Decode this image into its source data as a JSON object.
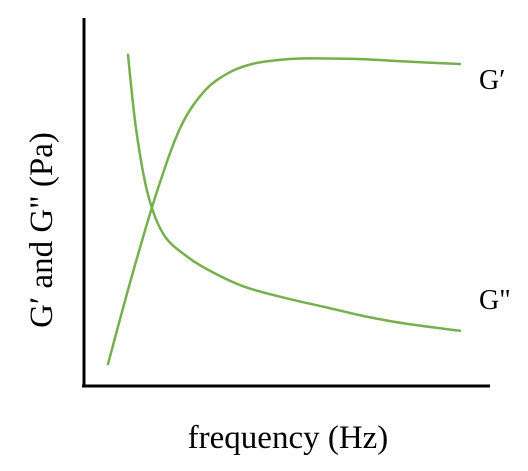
{
  "chart_data": {
    "type": "line",
    "title": "",
    "xlabel": "frequency (Hz)",
    "ylabel": "G′ and G\" (Pa)",
    "grid": false,
    "ticks_shown": false,
    "axis_units": "normalized (no tick labels printed)",
    "xlim": [
      0,
      10
    ],
    "ylim": [
      0,
      10
    ],
    "series_color": "#76b04e",
    "series": [
      {
        "name": "G′",
        "x": [
          0.6,
          1.2,
          1.8,
          2.4,
          3.0,
          3.6,
          4.2,
          4.8,
          5.4,
          6.0,
          7.0,
          8.0,
          9.4
        ],
        "y": [
          0.6,
          3.0,
          5.2,
          7.0,
          8.0,
          8.5,
          8.75,
          8.85,
          8.9,
          8.9,
          8.88,
          8.82,
          8.75
        ]
      },
      {
        "name": "G\"",
        "x": [
          1.1,
          1.3,
          1.6,
          2.0,
          2.6,
          3.2,
          4.0,
          5.0,
          6.0,
          7.0,
          8.0,
          9.4
        ],
        "y": [
          9.0,
          7.0,
          5.2,
          4.1,
          3.5,
          3.1,
          2.7,
          2.4,
          2.15,
          1.9,
          1.7,
          1.5
        ]
      }
    ]
  }
}
